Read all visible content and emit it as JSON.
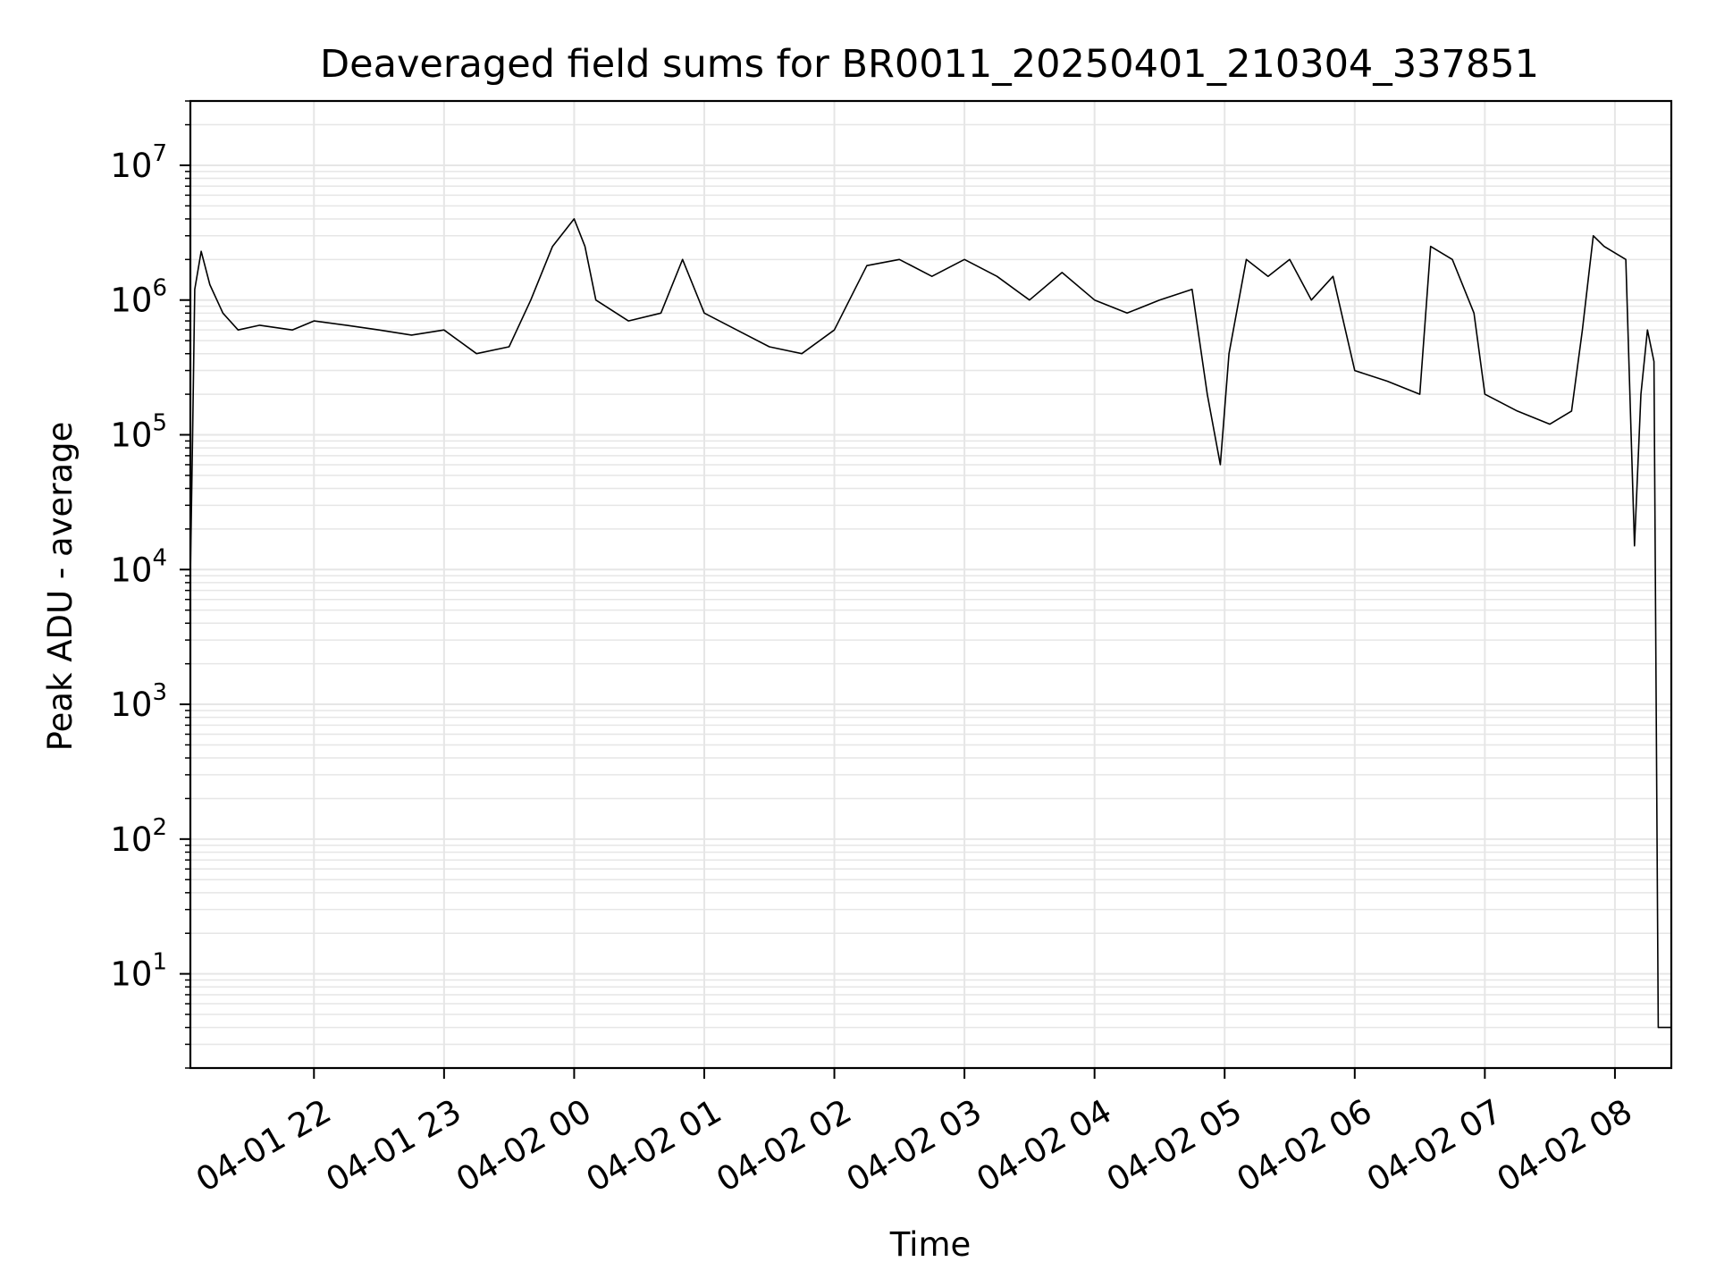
{
  "chart_data": {
    "type": "line",
    "title": "Deaveraged field sums for BR0011_20250401_210304_337851",
    "xlabel": "Time",
    "ylabel": "Peak ADU - average",
    "yscale": "log",
    "xlim": [
      "2025-04-01 21:03",
      "2025-04-02 08:26"
    ],
    "ylim": [
      2,
      30000000
    ],
    "grid": {
      "major": true,
      "minor_y": true,
      "color": "#e6e6e6"
    },
    "x_ticks": [
      "04-01 22",
      "04-01 23",
      "04-02 00",
      "04-02 01",
      "04-02 02",
      "04-02 03",
      "04-02 04",
      "04-02 05",
      "04-02 06",
      "04-02 07",
      "04-02 08"
    ],
    "x_tick_times": [
      "2025-04-01 22:00",
      "2025-04-01 23:00",
      "2025-04-02 00:00",
      "2025-04-02 01:00",
      "2025-04-02 02:00",
      "2025-04-02 03:00",
      "2025-04-02 04:00",
      "2025-04-02 05:00",
      "2025-04-02 06:00",
      "2025-04-02 07:00",
      "2025-04-02 08:00"
    ],
    "y_ticks": [
      {
        "value": 10,
        "base": "10",
        "exp": "1"
      },
      {
        "value": 100,
        "base": "10",
        "exp": "2"
      },
      {
        "value": 1000,
        "base": "10",
        "exp": "3"
      },
      {
        "value": 10000,
        "base": "10",
        "exp": "4"
      },
      {
        "value": 100000,
        "base": "10",
        "exp": "5"
      },
      {
        "value": 1000000,
        "base": "10",
        "exp": "6"
      },
      {
        "value": 10000000,
        "base": "10",
        "exp": "7"
      }
    ],
    "series": [
      {
        "color": "#000000",
        "points": [
          [
            "2025-04-01 21:03",
            9000
          ],
          [
            "2025-04-01 21:04",
            90000
          ],
          [
            "2025-04-01 21:05",
            1200000
          ],
          [
            "2025-04-01 21:08",
            2300000
          ],
          [
            "2025-04-01 21:12",
            1300000
          ],
          [
            "2025-04-01 21:18",
            800000
          ],
          [
            "2025-04-01 21:25",
            600000
          ],
          [
            "2025-04-01 21:35",
            650000
          ],
          [
            "2025-04-01 21:50",
            600000
          ],
          [
            "2025-04-01 22:00",
            700000
          ],
          [
            "2025-04-01 22:15",
            650000
          ],
          [
            "2025-04-01 22:30",
            600000
          ],
          [
            "2025-04-01 22:45",
            550000
          ],
          [
            "2025-04-01 23:00",
            600000
          ],
          [
            "2025-04-01 23:15",
            400000
          ],
          [
            "2025-04-01 23:30",
            450000
          ],
          [
            "2025-04-01 23:40",
            1000000
          ],
          [
            "2025-04-01 23:50",
            2500000
          ],
          [
            "2025-04-02 00:00",
            4000000
          ],
          [
            "2025-04-02 00:05",
            2500000
          ],
          [
            "2025-04-02 00:10",
            1000000
          ],
          [
            "2025-04-02 00:25",
            700000
          ],
          [
            "2025-04-02 00:40",
            800000
          ],
          [
            "2025-04-02 00:50",
            2000000
          ],
          [
            "2025-04-02 01:00",
            800000
          ],
          [
            "2025-04-02 01:15",
            600000
          ],
          [
            "2025-04-02 01:30",
            450000
          ],
          [
            "2025-04-02 01:45",
            400000
          ],
          [
            "2025-04-02 02:00",
            600000
          ],
          [
            "2025-04-02 02:15",
            1800000
          ],
          [
            "2025-04-02 02:30",
            2000000
          ],
          [
            "2025-04-02 02:45",
            1500000
          ],
          [
            "2025-04-02 03:00",
            2000000
          ],
          [
            "2025-04-02 03:15",
            1500000
          ],
          [
            "2025-04-02 03:30",
            1000000
          ],
          [
            "2025-04-02 03:45",
            1600000
          ],
          [
            "2025-04-02 04:00",
            1000000
          ],
          [
            "2025-04-02 04:15",
            800000
          ],
          [
            "2025-04-02 04:30",
            1000000
          ],
          [
            "2025-04-02 04:45",
            1200000
          ],
          [
            "2025-04-02 04:52",
            200000
          ],
          [
            "2025-04-02 04:58",
            60000
          ],
          [
            "2025-04-02 05:02",
            400000
          ],
          [
            "2025-04-02 05:10",
            2000000
          ],
          [
            "2025-04-02 05:20",
            1500000
          ],
          [
            "2025-04-02 05:30",
            2000000
          ],
          [
            "2025-04-02 05:40",
            1000000
          ],
          [
            "2025-04-02 05:50",
            1500000
          ],
          [
            "2025-04-02 06:00",
            300000
          ],
          [
            "2025-04-02 06:15",
            250000
          ],
          [
            "2025-04-02 06:30",
            200000
          ],
          [
            "2025-04-02 06:35",
            2500000
          ],
          [
            "2025-04-02 06:45",
            2000000
          ],
          [
            "2025-04-02 06:55",
            800000
          ],
          [
            "2025-04-02 07:00",
            200000
          ],
          [
            "2025-04-02 07:15",
            150000
          ],
          [
            "2025-04-02 07:30",
            120000
          ],
          [
            "2025-04-02 07:40",
            150000
          ],
          [
            "2025-04-02 07:45",
            600000
          ],
          [
            "2025-04-02 07:50",
            3000000
          ],
          [
            "2025-04-02 07:55",
            2500000
          ],
          [
            "2025-04-02 08:05",
            2000000
          ],
          [
            "2025-04-02 08:09",
            15000
          ],
          [
            "2025-04-02 08:12",
            200000
          ],
          [
            "2025-04-02 08:15",
            600000
          ],
          [
            "2025-04-02 08:18",
            350000
          ],
          [
            "2025-04-02 08:20",
            4
          ],
          [
            "2025-04-02 08:26",
            4
          ]
        ]
      }
    ]
  }
}
